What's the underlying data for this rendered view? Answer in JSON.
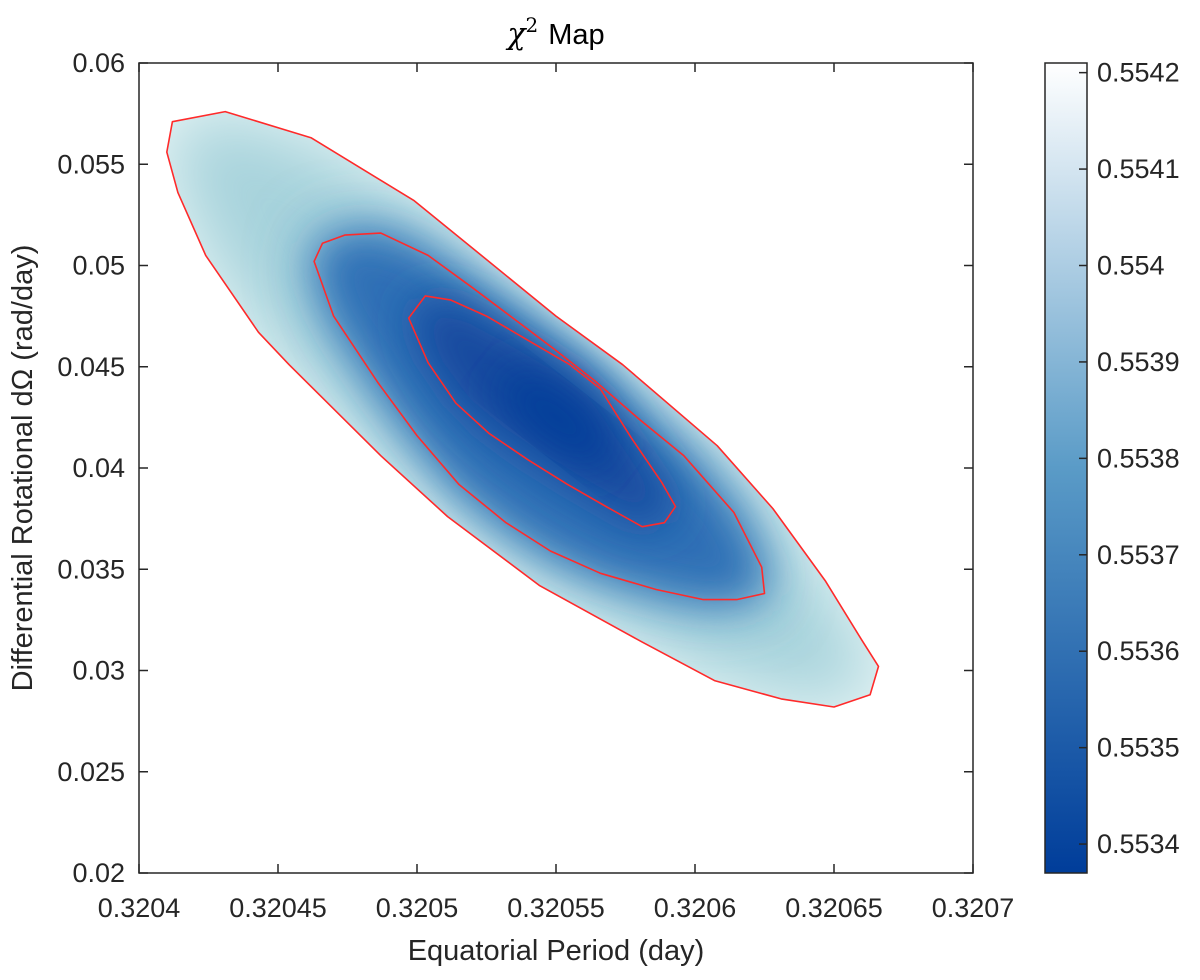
{
  "chart_data": {
    "type": "contour",
    "title": {
      "symbol": "χ",
      "superscript": "2",
      "rest": "Map"
    },
    "xlabel": "Equatorial Period (day)",
    "ylabel": "Differential Rotational dΩ (rad/day)",
    "xlim": [
      0.3204,
      0.3207
    ],
    "ylim": [
      0.02,
      0.06
    ],
    "x_ticks": [
      {
        "value": 0.3204,
        "label": "0.3204"
      },
      {
        "value": 0.32045,
        "label": "0.32045"
      },
      {
        "value": 0.3205,
        "label": "0.3205"
      },
      {
        "value": 0.32055,
        "label": "0.32055"
      },
      {
        "value": 0.3206,
        "label": "0.3206"
      },
      {
        "value": 0.32065,
        "label": "0.32065"
      },
      {
        "value": 0.3207,
        "label": "0.3207"
      }
    ],
    "y_ticks": [
      {
        "value": 0.02,
        "label": "0.02"
      },
      {
        "value": 0.025,
        "label": "0.025"
      },
      {
        "value": 0.03,
        "label": "0.03"
      },
      {
        "value": 0.035,
        "label": "0.035"
      },
      {
        "value": 0.04,
        "label": "0.04"
      },
      {
        "value": 0.045,
        "label": "0.045"
      },
      {
        "value": 0.05,
        "label": "0.05"
      },
      {
        "value": 0.055,
        "label": "0.055"
      },
      {
        "value": 0.06,
        "label": "0.06"
      }
    ],
    "colorbar": {
      "range": [
        0.55337,
        0.55421
      ],
      "ticks": [
        {
          "value": 0.5534,
          "label": "0.5534"
        },
        {
          "value": 0.5535,
          "label": "0.5535"
        },
        {
          "value": 0.5536,
          "label": "0.5536"
        },
        {
          "value": 0.5537,
          "label": "0.5537"
        },
        {
          "value": 0.5538,
          "label": "0.5538"
        },
        {
          "value": 0.5539,
          "label": "0.5539"
        },
        {
          "value": 0.554,
          "label": "0.554"
        },
        {
          "value": 0.5541,
          "label": "0.5541"
        },
        {
          "value": 0.5542,
          "label": "0.5542"
        }
      ],
      "color_low": "#003d9a",
      "color_mid": "#5a9bc7",
      "color_high": "#ffffff"
    },
    "minimum": {
      "x": 0.32055,
      "y": 0.0425,
      "chi2": 0.55337
    },
    "contour_color": "#ff2a2a",
    "contours": [
      {
        "name": "outer",
        "points": [
          [
            0.32041,
            0.0556
          ],
          [
            0.320412,
            0.0571
          ],
          [
            0.320431,
            0.0576
          ],
          [
            0.320462,
            0.0563
          ],
          [
            0.320499,
            0.0532
          ],
          [
            0.32055,
            0.0475
          ],
          [
            0.320574,
            0.0451
          ],
          [
            0.320608,
            0.0411
          ],
          [
            0.320628,
            0.038
          ],
          [
            0.320647,
            0.0344
          ],
          [
            0.32066,
            0.0315
          ],
          [
            0.320666,
            0.0302
          ],
          [
            0.320663,
            0.0288
          ],
          [
            0.32065,
            0.0282
          ],
          [
            0.320631,
            0.0286
          ],
          [
            0.320607,
            0.0295
          ],
          [
            0.320581,
            0.0314
          ],
          [
            0.320544,
            0.0342
          ],
          [
            0.320511,
            0.0376
          ],
          [
            0.320487,
            0.0406
          ],
          [
            0.320454,
            0.0451
          ],
          [
            0.320443,
            0.0467
          ],
          [
            0.320424,
            0.0505
          ],
          [
            0.320414,
            0.0536
          ]
        ]
      },
      {
        "name": "middle",
        "points": [
          [
            0.320463,
            0.0502
          ],
          [
            0.320466,
            0.0511
          ],
          [
            0.320474,
            0.0515
          ],
          [
            0.320487,
            0.0516
          ],
          [
            0.320504,
            0.0505
          ],
          [
            0.32052,
            0.0489
          ],
          [
            0.32055,
            0.0458
          ],
          [
            0.320564,
            0.0443
          ],
          [
            0.32058,
            0.0424
          ],
          [
            0.320596,
            0.0406
          ],
          [
            0.320614,
            0.0378
          ],
          [
            0.320624,
            0.0351
          ],
          [
            0.320625,
            0.0338
          ],
          [
            0.320615,
            0.0335
          ],
          [
            0.320603,
            0.0335
          ],
          [
            0.320586,
            0.034
          ],
          [
            0.320566,
            0.0348
          ],
          [
            0.320548,
            0.0359
          ],
          [
            0.320532,
            0.0373
          ],
          [
            0.320515,
            0.0392
          ],
          [
            0.3205,
            0.0416
          ],
          [
            0.320486,
            0.0442
          ],
          [
            0.32047,
            0.0475
          ]
        ]
      },
      {
        "name": "inner",
        "points": [
          [
            0.320497,
            0.0474
          ],
          [
            0.320503,
            0.0485
          ],
          [
            0.320512,
            0.0483
          ],
          [
            0.320525,
            0.0475
          ],
          [
            0.32054,
            0.0463
          ],
          [
            0.320555,
            0.0451
          ],
          [
            0.320566,
            0.0439
          ],
          [
            0.320577,
            0.0415
          ],
          [
            0.320588,
            0.0393
          ],
          [
            0.320593,
            0.0381
          ],
          [
            0.320589,
            0.0373
          ],
          [
            0.320581,
            0.0371
          ],
          [
            0.320568,
            0.0381
          ],
          [
            0.320554,
            0.0392
          ],
          [
            0.32054,
            0.0404
          ],
          [
            0.320526,
            0.0417
          ],
          [
            0.320514,
            0.0432
          ],
          [
            0.320504,
            0.0452
          ]
        ]
      }
    ]
  }
}
